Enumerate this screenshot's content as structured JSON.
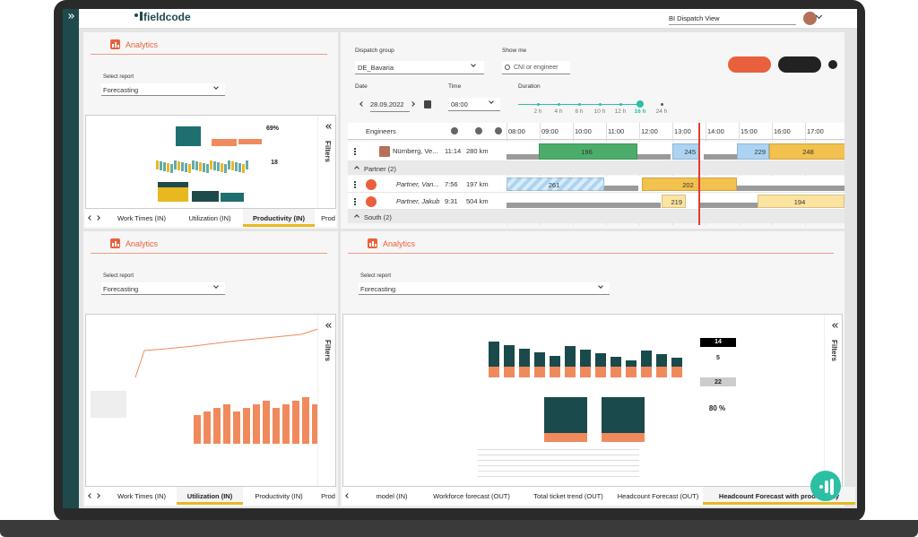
{
  "header": {
    "logo": "fieldcode",
    "view": "BI Dispatch View"
  },
  "analytics_panels": [
    {
      "title": "Analytics",
      "select_label": "Select report",
      "report": "Forecasting",
      "filters": "Filters",
      "tabs": [
        "Work Times (IN)",
        "Utilization (IN)",
        "Productivity (IN)",
        "Prod"
      ],
      "active_tab": 2,
      "thumbnail_labels": [
        "69%",
        "18"
      ]
    },
    {
      "title": "Analytics",
      "select_label": "Select report",
      "report": "Forecasting",
      "filters": "Filters",
      "tabs": [
        "Work Times (IN)",
        "Utilization (IN)",
        "Productivity (IN)",
        "Prod"
      ],
      "active_tab": 1
    },
    {
      "title": "Analytics",
      "select_label": "Select report",
      "report": "Forecasting",
      "filters": "Filters",
      "tabs": [
        "model (IN)",
        "Workforce forecast (OUT)",
        "Total ticket trend (OUT)",
        "Headcount Forecast (OUT)",
        "Headcount Forecast with productivity"
      ],
      "active_tab": 4,
      "thumbnail_labels": [
        "14",
        "5",
        "22",
        "80 %"
      ]
    }
  ],
  "dispatch": {
    "dispatch_group_label": "Dispatch group",
    "dispatch_group": "DE_Bavaria",
    "show_me_label": "Show me",
    "search_placeholder": "CNI or engineer",
    "date_label": "Date",
    "date": "28.09.2022",
    "time_label": "Time",
    "time": "08:00",
    "duration_label": "Duration",
    "durations": [
      "2 h",
      "4 h",
      "6 h",
      "10 h",
      "12 h",
      "16 h",
      "24 h"
    ],
    "active_duration": 5,
    "engineers_label": "Engineers",
    "hours": [
      "08:00",
      "09:00",
      "10:00",
      "11:00",
      "12:00",
      "13:00",
      "14:00",
      "15:00",
      "16:00",
      "17:00"
    ],
    "rows": [
      {
        "name": "Nürnberg, Ve...",
        "time": "11:14",
        "distance": "280 km",
        "tasks": [
          "196",
          "245",
          "229",
          "248"
        ]
      },
      {
        "group": "Partner (2)"
      },
      {
        "name": "Partner, Van...",
        "time": "7:56",
        "distance": "197 km",
        "tasks": [
          "261",
          "202"
        ]
      },
      {
        "name": "Partner, Jakub",
        "time": "9:31",
        "distance": "504 km",
        "tasks": [
          "219",
          "194"
        ]
      },
      {
        "group": "South (2)"
      }
    ]
  }
}
